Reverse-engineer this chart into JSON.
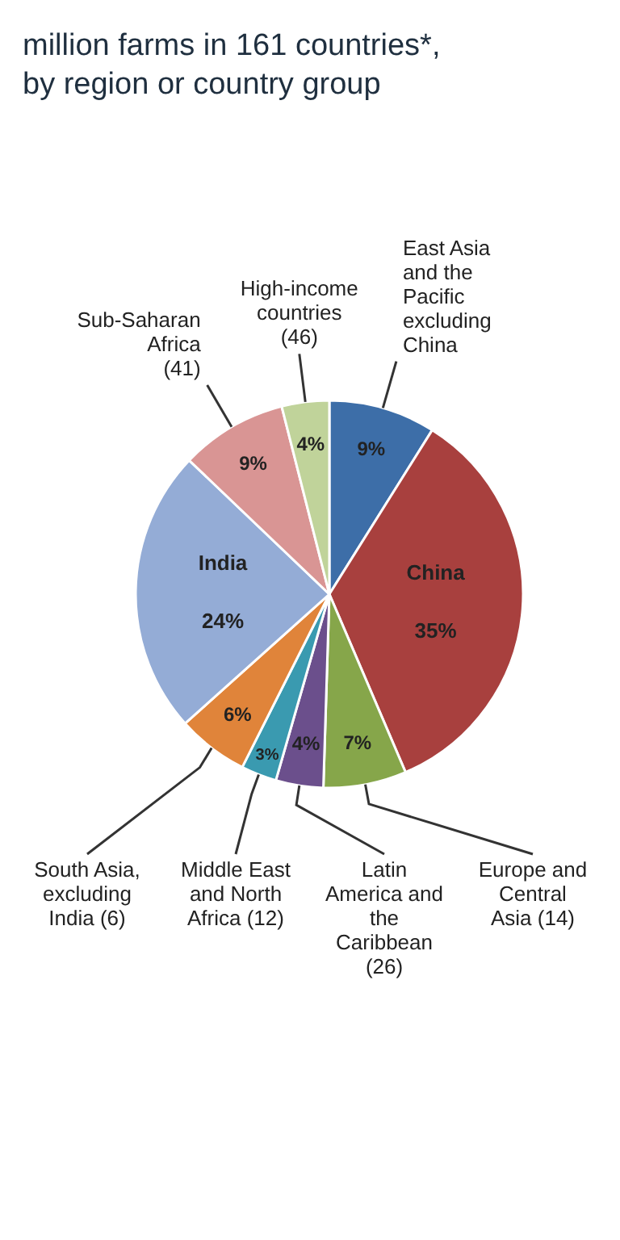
{
  "chart_data": {
    "type": "pie",
    "title": "million farms in 161 countries*, by region or country group",
    "categories": [
      "East Asia and the Pacific excluding China",
      "China",
      "Europe and Central Asia (14)",
      "Latin America and the Caribbean (26)",
      "Middle East and North Africa (12)",
      "South Asia, excluding India (6)",
      "India",
      "Sub-Saharan Africa (41)",
      "High-income countries (46)"
    ],
    "values": [
      9,
      35,
      7,
      4,
      3,
      6,
      24,
      9,
      4
    ],
    "value_labels": [
      "9%",
      "35%",
      "7%",
      "4%",
      "3%",
      "6%",
      "24%",
      "9%",
      "4%"
    ],
    "colors": [
      "#3d6ea8",
      "#a8403e",
      "#86a64a",
      "#6b4f8c",
      "#3a9ab0",
      "#e0843a",
      "#94acd6",
      "#d99594",
      "#c0d39a"
    ]
  }
}
